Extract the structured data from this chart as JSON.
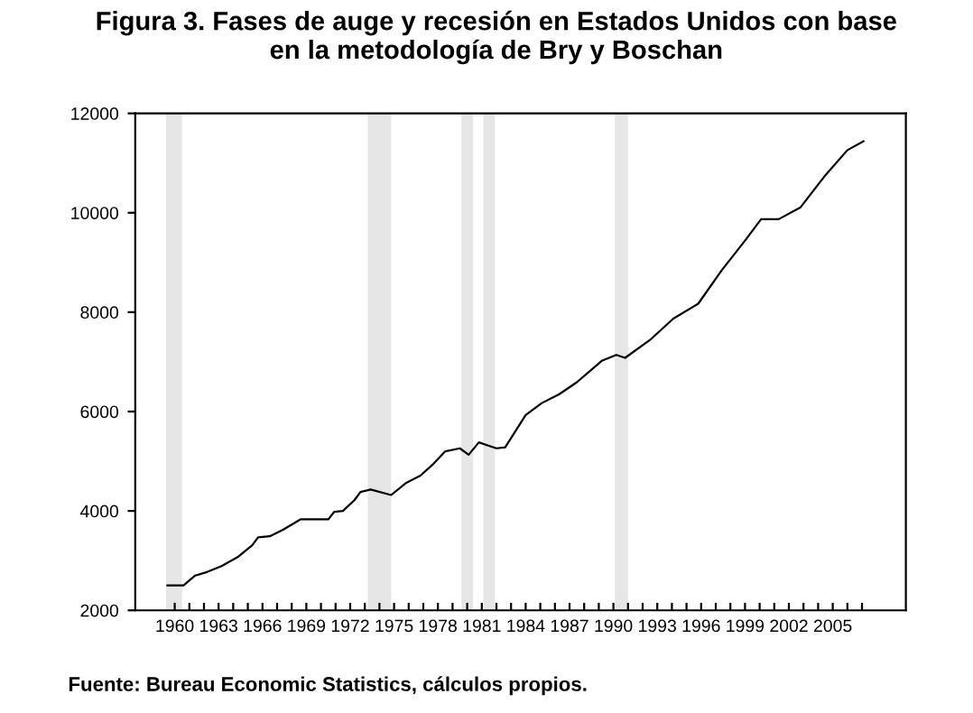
{
  "chart_data": {
    "type": "line",
    "title": "Figura 3. Fases de auge y recesión en Estados Unidos con base\nen la metodología de Bry y Boschan",
    "annotations": [
      "Fuente: Bureau Economic Statistics, cálculos propios."
    ],
    "x": [
      1959.5,
      1960.6,
      1961.4,
      1962.2,
      1963.2,
      1964.3,
      1965.3,
      1965.7,
      1966.5,
      1967.4,
      1968.6,
      1970.5,
      1970.9,
      1971.5,
      1972.3,
      1972.7,
      1973.4,
      1974.8,
      1975.8,
      1976.8,
      1977.7,
      1978.5,
      1979.5,
      1980.1,
      1980.8,
      1981.4,
      1982.0,
      1982.6,
      1984.0,
      1985.1,
      1986.3,
      1987.5,
      1989.2,
      1990.2,
      1990.8,
      1992.5,
      1994.1,
      1995.8,
      1997.4,
      1999.0,
      2000.1,
      2001.3,
      2002.8,
      2004.4,
      2006.0,
      2007.1
    ],
    "series": [
      {
        "color": "#000000",
        "values": [
          2500,
          2500,
          2700,
          2770,
          2890,
          3070,
          3310,
          3470,
          3490,
          3620,
          3830,
          3830,
          3980,
          4000,
          4220,
          4380,
          4430,
          4320,
          4560,
          4710,
          4950,
          5200,
          5260,
          5130,
          5380,
          5320,
          5260,
          5280,
          5930,
          6170,
          6350,
          6590,
          7020,
          7140,
          7080,
          7440,
          7870,
          8170,
          8840,
          9440,
          9870,
          9870,
          10110,
          10720,
          11260,
          11440
        ]
      }
    ],
    "bands": [
      {
        "axis": "x",
        "from": 1959.4,
        "to": 1960.5,
        "color": "#e6e6e6"
      },
      {
        "axis": "x",
        "from": 1973.2,
        "to": 1974.8,
        "color": "#e6e6e6"
      },
      {
        "axis": "x",
        "from": 1979.6,
        "to": 1980.4,
        "color": "#e6e6e6"
      },
      {
        "axis": "x",
        "from": 1981.1,
        "to": 1981.9,
        "color": "#e6e6e6"
      },
      {
        "axis": "x",
        "from": 1990.1,
        "to": 1991.0,
        "color": "#e6e6e6"
      }
    ],
    "xlim": [
      1957.3,
      2010
    ],
    "xticks": [
      1960,
      {
        "value": 1961,
        "label": null
      },
      {
        "value": 1962,
        "label": null
      },
      1963,
      {
        "value": 1964,
        "label": null
      },
      {
        "value": 1965,
        "label": null
      },
      1966,
      {
        "value": 1967,
        "label": null
      },
      {
        "value": 1968,
        "label": null
      },
      1969,
      {
        "value": 1970,
        "label": null
      },
      {
        "value": 1971,
        "label": null
      },
      1972,
      {
        "value": 1973,
        "label": null
      },
      {
        "value": 1974,
        "label": null
      },
      1975,
      {
        "value": 1976,
        "label": null
      },
      {
        "value": 1977,
        "label": null
      },
      1978,
      {
        "value": 1979,
        "label": null
      },
      {
        "value": 1980,
        "label": null
      },
      1981,
      {
        "value": 1982,
        "label": null
      },
      {
        "value": 1983,
        "label": null
      },
      1984,
      {
        "value": 1985,
        "label": null
      },
      {
        "value": 1986,
        "label": null
      },
      1987,
      {
        "value": 1988,
        "label": null
      },
      {
        "value": 1989,
        "label": null
      },
      1990,
      {
        "value": 1991,
        "label": null
      },
      {
        "value": 1992,
        "label": null
      },
      1993,
      {
        "value": 1994,
        "label": null
      },
      {
        "value": 1995,
        "label": null
      },
      1996,
      {
        "value": 1997,
        "label": null
      },
      {
        "value": 1998,
        "label": null
      },
      1999,
      {
        "value": 2000,
        "label": null
      },
      {
        "value": 2001,
        "label": null
      },
      2002,
      {
        "value": 2003,
        "label": null
      },
      {
        "value": 2004,
        "label": null
      },
      2005,
      {
        "value": 2006,
        "label": null
      },
      {
        "value": 2007,
        "label": null
      }
    ],
    "ylim": [
      2000,
      12000
    ],
    "yticks": [
      2000,
      4000,
      6000,
      8000,
      10000,
      12000
    ],
    "marker": "none",
    "line_style": "solid"
  }
}
